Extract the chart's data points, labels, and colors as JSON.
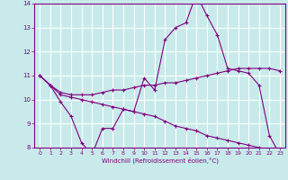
{
  "xlabel": "Windchill (Refroidissement éolien,°C)",
  "bg_color": "#c8eaea",
  "grid_color": "#ffffff",
  "line_color": "#800080",
  "xmin": -0.5,
  "xmax": 23.5,
  "ymin": 8,
  "ymax": 14,
  "yticks": [
    8,
    9,
    10,
    11,
    12,
    13,
    14
  ],
  "xticks": [
    0,
    1,
    2,
    3,
    4,
    5,
    6,
    7,
    8,
    9,
    10,
    11,
    12,
    13,
    14,
    15,
    16,
    17,
    18,
    19,
    20,
    21,
    22,
    23
  ],
  "line1_x": [
    0,
    1,
    2,
    3,
    4,
    5,
    6,
    7,
    8,
    9,
    10,
    11,
    12,
    13,
    14,
    15,
    16,
    17,
    18,
    19,
    20,
    21,
    22,
    23
  ],
  "line1_y": [
    11.0,
    10.6,
    9.9,
    9.3,
    8.2,
    7.7,
    8.8,
    8.8,
    9.6,
    9.5,
    10.9,
    10.4,
    12.5,
    13.0,
    13.2,
    14.4,
    13.5,
    12.7,
    11.3,
    11.2,
    11.1,
    10.6,
    8.5,
    7.7
  ],
  "line2_x": [
    0,
    1,
    2,
    3,
    4,
    5,
    6,
    7,
    8,
    9,
    10,
    11,
    12,
    13,
    14,
    15,
    16,
    17,
    18,
    19,
    20,
    21,
    22,
    23
  ],
  "line2_y": [
    11.0,
    10.6,
    10.3,
    10.2,
    10.2,
    10.2,
    10.3,
    10.4,
    10.4,
    10.5,
    10.6,
    10.6,
    10.7,
    10.7,
    10.8,
    10.9,
    11.0,
    11.1,
    11.2,
    11.3,
    11.3,
    11.3,
    11.3,
    11.2
  ],
  "line3_x": [
    0,
    1,
    2,
    3,
    4,
    5,
    6,
    7,
    8,
    9,
    10,
    11,
    12,
    13,
    14,
    15,
    16,
    17,
    18,
    19,
    20,
    21,
    22,
    23
  ],
  "line3_y": [
    11.0,
    10.6,
    10.2,
    10.1,
    10.0,
    9.9,
    9.8,
    9.7,
    9.6,
    9.5,
    9.4,
    9.3,
    9.1,
    8.9,
    8.8,
    8.7,
    8.5,
    8.4,
    8.3,
    8.2,
    8.1,
    8.0,
    7.9,
    7.7
  ]
}
